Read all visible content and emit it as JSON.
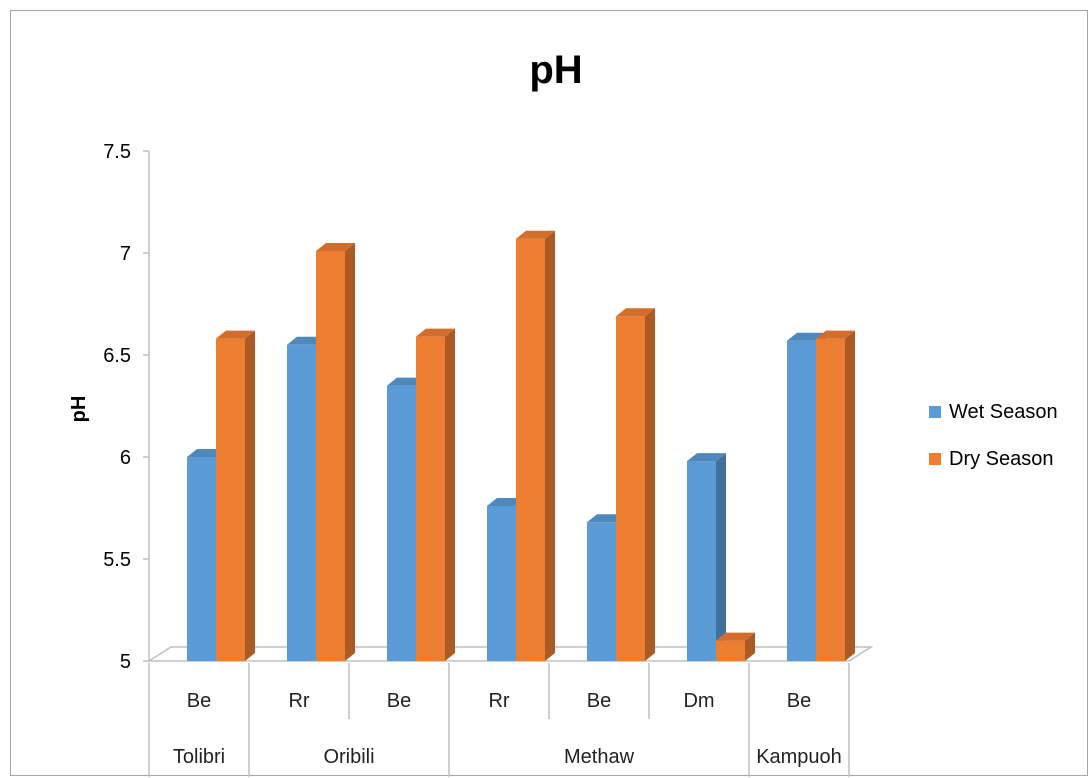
{
  "chart_data": {
    "type": "bar",
    "title": "pH",
    "ylabel": "pH",
    "xlabel": "",
    "ylim": [
      5,
      7.5
    ],
    "yticks": [
      "7.5",
      "7",
      "6.5",
      "6",
      "5.5",
      "5"
    ],
    "categories": [
      "Be",
      "Rr",
      "Be",
      "Rr",
      "Be",
      "Dm",
      "Be"
    ],
    "groups": [
      {
        "label": "Tolibri",
        "span": 1
      },
      {
        "label": "Oribili",
        "span": 2
      },
      {
        "label": "Methaw",
        "span": 3
      },
      {
        "label": "Kampuoh",
        "span": 1
      }
    ],
    "series": [
      {
        "name": "Wet Season",
        "color": "#5b9bd5",
        "values": [
          6.0,
          6.55,
          6.35,
          5.76,
          5.68,
          5.98,
          6.57
        ]
      },
      {
        "name": "Dry Season",
        "color": "#ed7d31",
        "values": [
          6.58,
          7.01,
          6.59,
          7.07,
          6.69,
          5.1,
          6.58
        ]
      }
    ],
    "grid": false,
    "legend_position": "right",
    "style": "3d-clustered-column"
  }
}
